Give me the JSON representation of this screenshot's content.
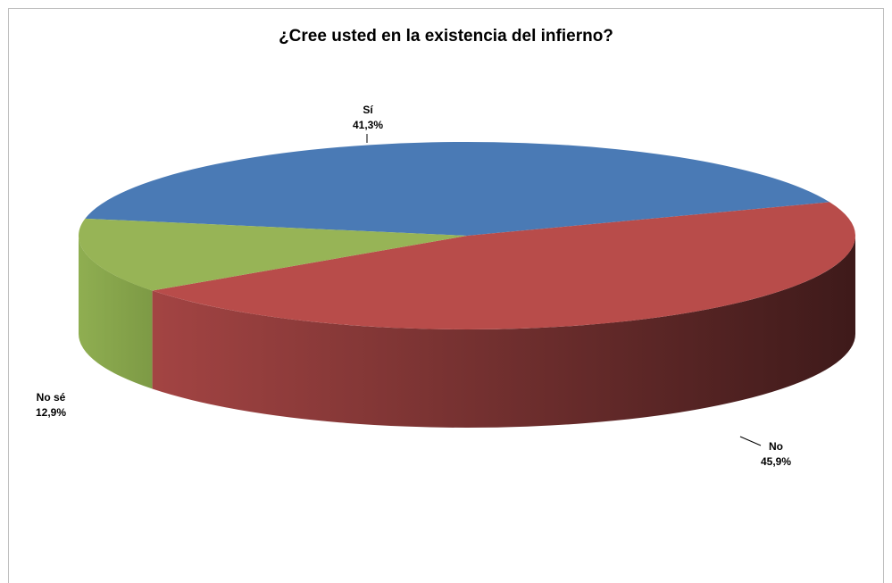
{
  "chart_data": {
    "type": "pie",
    "style": "3d",
    "title": "¿Cree usted en la existencia del infierno?",
    "slices": [
      {
        "name": "Sí",
        "value": 41.3,
        "label": "41,3%",
        "color": "#4a7ab5"
      },
      {
        "name": "No",
        "value": 45.9,
        "label": "45,9%",
        "color": "#b84c4a"
      },
      {
        "name": "No sé",
        "value": 12.9,
        "label": "12,9%",
        "color": "#97b456"
      }
    ]
  }
}
